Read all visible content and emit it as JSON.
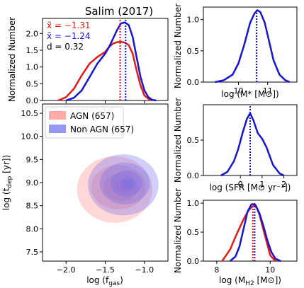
{
  "figure_title": "Salim (2017)",
  "colors": {
    "agn": "#e8191a",
    "non_agn": "#1515d4",
    "agn_fill": "#ff6f6f",
    "non_agn_fill": "#6a6af0"
  },
  "chart_data": [
    {
      "id": "top-left",
      "type": "line",
      "title": "Salim (2017)",
      "xlabel": "",
      "ylabel": "Normalized Number",
      "xlim": [
        -2.3,
        -0.7
      ],
      "ylim": [
        0,
        2.45
      ],
      "yticks": [
        "0.0",
        "0.5",
        "1.0",
        "1.5",
        "2.0"
      ],
      "ytick_values": [
        0,
        0.5,
        1,
        1.5,
        2
      ],
      "xtick_values": [
        -2.0,
        -1.5,
        -1.0
      ],
      "annotations": {
        "agn_median": "x̃ = −1.31",
        "non_agn_median": "x̃ = −1.24",
        "d": "d = 0.32"
      },
      "medians": {
        "agn": -1.31,
        "non_agn": -1.24
      },
      "series": [
        {
          "name": "AGN",
          "color": "#e8191a",
          "x": [
            -2.1,
            -2.0,
            -1.9,
            -1.8,
            -1.7,
            -1.6,
            -1.5,
            -1.45,
            -1.4,
            -1.35,
            -1.3,
            -1.25,
            -1.2,
            -1.15,
            -1.1,
            -1.05,
            -1.0,
            -0.95,
            -0.9
          ],
          "y": [
            0.0,
            0.1,
            0.35,
            0.75,
            1.1,
            1.3,
            1.45,
            1.6,
            1.7,
            1.74,
            1.75,
            1.73,
            1.65,
            1.4,
            0.9,
            0.45,
            0.15,
            0.05,
            0.0
          ]
        },
        {
          "name": "Non AGN",
          "color": "#1515d4",
          "x": [
            -2.0,
            -1.9,
            -1.8,
            -1.7,
            -1.6,
            -1.5,
            -1.45,
            -1.4,
            -1.35,
            -1.3,
            -1.25,
            -1.2,
            -1.15,
            -1.1,
            -1.05,
            -1.0,
            -0.95,
            -0.9,
            -0.85
          ],
          "y": [
            0.0,
            0.08,
            0.3,
            0.7,
            1.1,
            1.4,
            1.6,
            1.85,
            2.1,
            2.3,
            2.33,
            2.25,
            1.9,
            1.3,
            0.7,
            0.3,
            0.1,
            0.02,
            0.0
          ]
        }
      ]
    },
    {
      "id": "scatter-contour",
      "type": "area",
      "xlabel": "log (f_gas)",
      "ylabel": "log (t_dep [yr])",
      "xlim": [
        -2.3,
        -0.7
      ],
      "ylim": [
        7.3,
        10.7
      ],
      "xticks": [
        "−2.0",
        "−1.5",
        "−1.0"
      ],
      "xtick_values": [
        -2.0,
        -1.5,
        -1.0
      ],
      "yticks": [
        "7.5",
        "8.0",
        "8.5",
        "9.0",
        "9.5",
        "10.0",
        "10.5"
      ],
      "ytick_values": [
        7.5,
        8.0,
        8.5,
        9.0,
        9.5,
        10.0,
        10.5
      ],
      "legend": {
        "placement": "top-left",
        "entries": [
          "AGN (657)",
          "Non AGN (657)"
        ]
      },
      "contours": {
        "agn": [
          {
            "level": 1,
            "cx": -1.38,
            "cy": 8.85,
            "rx": 0.48,
            "ry": 0.72
          },
          {
            "level": 2,
            "cx": -1.33,
            "cy": 8.9,
            "rx": 0.35,
            "ry": 0.48
          },
          {
            "level": 3,
            "cx": -1.3,
            "cy": 8.9,
            "rx": 0.22,
            "ry": 0.3
          },
          {
            "level": 4,
            "cx": -1.27,
            "cy": 8.92,
            "rx": 0.1,
            "ry": 0.14
          }
        ],
        "non_agn": [
          {
            "level": 1,
            "cx": -1.27,
            "cy": 8.95,
            "rx": 0.45,
            "ry": 0.66
          },
          {
            "level": 2,
            "cx": -1.25,
            "cy": 8.98,
            "rx": 0.32,
            "ry": 0.45
          },
          {
            "level": 3,
            "cx": -1.23,
            "cy": 8.98,
            "rx": 0.2,
            "ry": 0.28
          },
          {
            "level": 4,
            "cx": -1.21,
            "cy": 8.98,
            "rx": 0.09,
            "ry": 0.13
          }
        ]
      }
    },
    {
      "id": "right-mstar",
      "type": "line",
      "xlabel": "log (M* [M⊙])",
      "ylabel": "Normalized Number",
      "xlim": [
        8.8,
        12.0
      ],
      "ylim": [
        0,
        1.2
      ],
      "xticks": [
        "10",
        "11"
      ],
      "xtick_values": [
        10,
        11
      ],
      "yticks": [
        "0.0",
        "0.5",
        "1.0"
      ],
      "ytick_values": [
        0,
        0.5,
        1.0
      ],
      "medians": {
        "agn": 10.62,
        "non_agn": 10.62
      },
      "series": [
        {
          "name": "Non AGN",
          "color": "#1515d4",
          "x": [
            9.2,
            9.5,
            9.8,
            10.0,
            10.2,
            10.4,
            10.55,
            10.65,
            10.75,
            10.9,
            11.05,
            11.2,
            11.4,
            11.6,
            11.75
          ],
          "y": [
            0.0,
            0.03,
            0.12,
            0.3,
            0.6,
            0.95,
            1.1,
            1.15,
            1.12,
            0.95,
            0.65,
            0.35,
            0.12,
            0.03,
            0.0
          ]
        }
      ]
    },
    {
      "id": "right-sfr",
      "type": "line",
      "xlabel": "log (SFR [M⊙ yr⁻¹])",
      "ylabel": "Normalized Number",
      "xlim": [
        -1.7,
        2.6
      ],
      "ylim": [
        0,
        1.0
      ],
      "xticks": [
        "0",
        "1",
        "2"
      ],
      "xtick_values": [
        0,
        1,
        2
      ],
      "yticks": [
        "0.0",
        "0.5"
      ],
      "ytick_values": [
        0,
        0.5
      ],
      "medians": {
        "agn": 0.45,
        "non_agn": 0.45
      },
      "series": [
        {
          "name": "Non AGN",
          "color": "#1515d4",
          "x": [
            -0.9,
            -0.6,
            -0.3,
            -0.1,
            0.1,
            0.3,
            0.45,
            0.6,
            0.8,
            1.0,
            1.2,
            1.5,
            1.8,
            2.0
          ],
          "y": [
            0.0,
            0.05,
            0.2,
            0.37,
            0.6,
            0.8,
            0.88,
            0.78,
            0.6,
            0.52,
            0.4,
            0.15,
            0.03,
            0.0
          ]
        }
      ]
    },
    {
      "id": "right-mh2",
      "type": "line",
      "xlabel": "log (M_H2 [M⊙])",
      "ylabel": "Normalized Number",
      "xlim": [
        7.5,
        11.0
      ],
      "ylim": [
        0,
        1.05
      ],
      "xticks": [
        "8",
        "10"
      ],
      "xtick_values": [
        8,
        10
      ],
      "yticks": [
        "0.0",
        "0.5",
        "1.0"
      ],
      "ytick_values": [
        0,
        0.5,
        1.0
      ],
      "medians": {
        "agn": 9.35,
        "non_agn": 9.42
      },
      "series": [
        {
          "name": "AGN",
          "color": "#e8191a",
          "x": [
            8.2,
            8.5,
            8.7,
            8.9,
            9.0,
            9.1,
            9.2,
            9.3,
            9.4,
            9.5,
            9.6,
            9.8,
            10.0,
            10.2
          ],
          "y": [
            0.0,
            0.2,
            0.42,
            0.62,
            0.72,
            0.8,
            0.88,
            0.93,
            0.95,
            0.92,
            0.8,
            0.45,
            0.1,
            0.0
          ]
        },
        {
          "name": "Non AGN",
          "color": "#1515d4",
          "x": [
            8.5,
            8.7,
            8.85,
            9.0,
            9.15,
            9.3,
            9.45,
            9.6,
            9.75,
            9.9,
            10.05,
            10.2,
            10.4
          ],
          "y": [
            0.0,
            0.08,
            0.25,
            0.55,
            0.85,
            0.98,
            0.97,
            0.82,
            0.6,
            0.35,
            0.15,
            0.04,
            0.0
          ]
        }
      ]
    }
  ]
}
